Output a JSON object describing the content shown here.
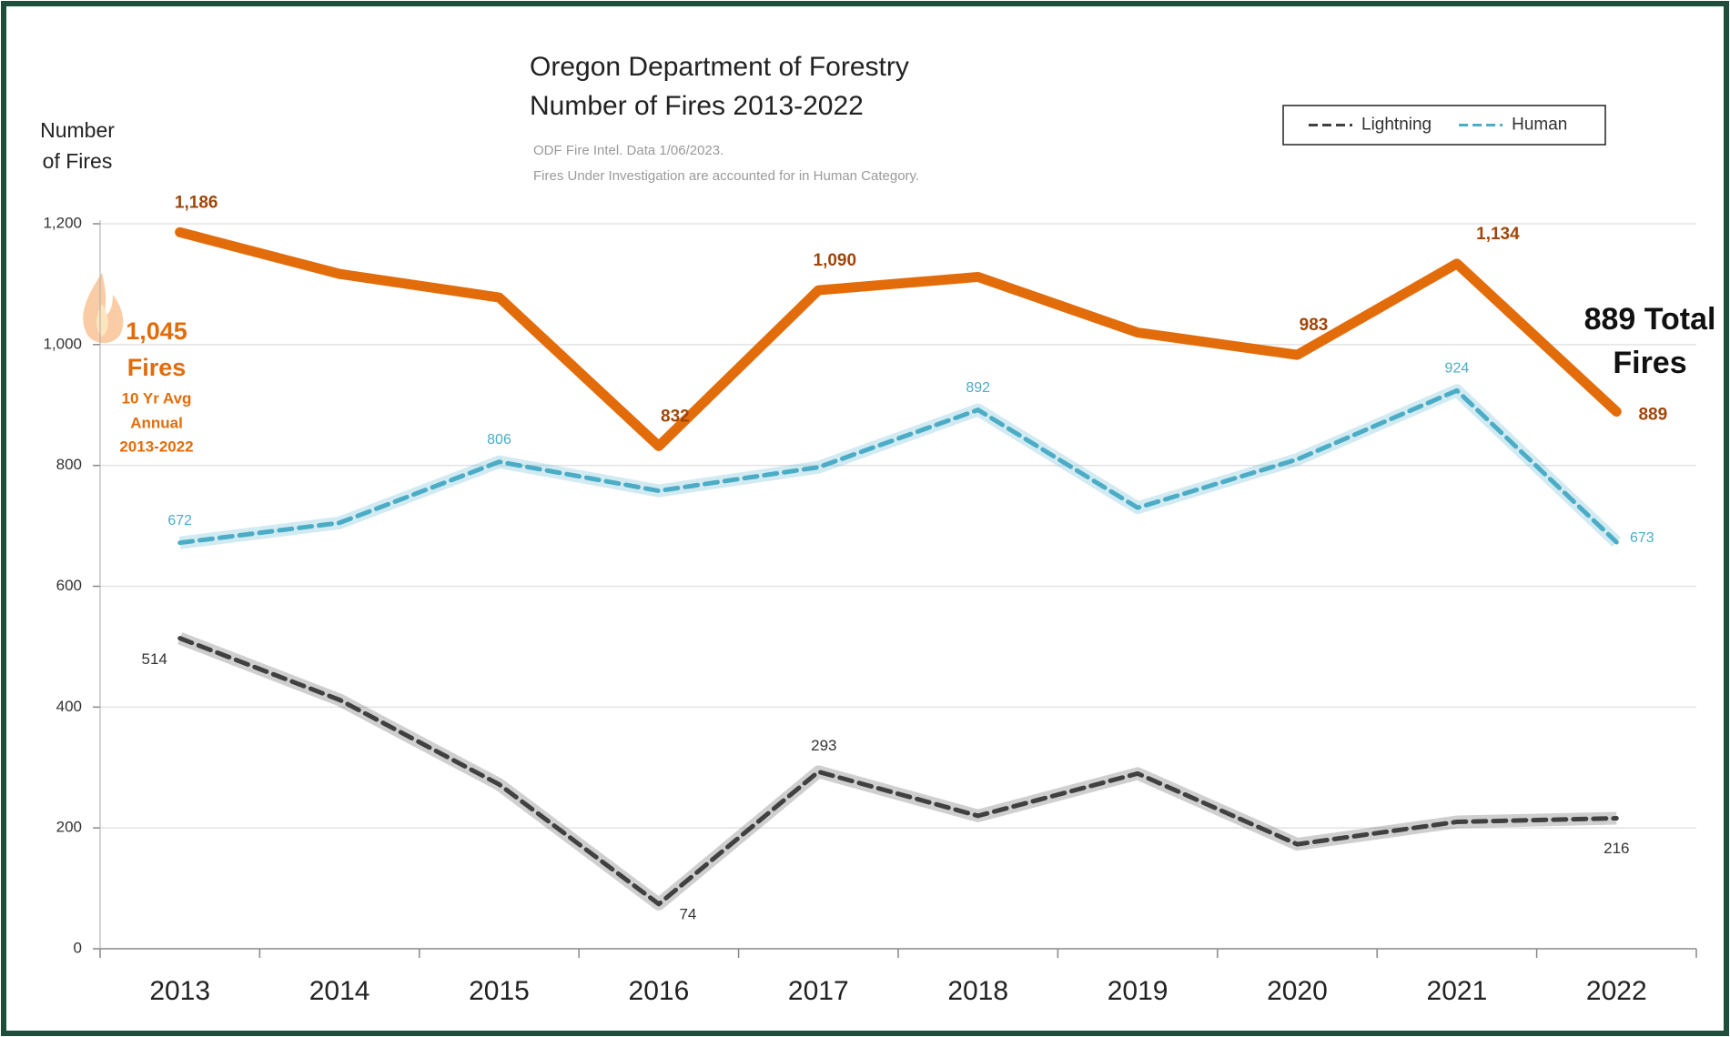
{
  "chart_data": {
    "type": "line",
    "title": [
      "Oregon Department of Forestry",
      "Number of Fires 2013-2022"
    ],
    "subtitle": [
      "ODF Fire Intel. Data 1/06/2023.",
      "Fires Under Investigation are accounted for in Human Category."
    ],
    "y_label": [
      "Number",
      "of Fires"
    ],
    "categories": [
      "2013",
      "2014",
      "2015",
      "2016",
      "2017",
      "2018",
      "2019",
      "2020",
      "2021",
      "2022"
    ],
    "series": [
      {
        "color": "#e36c0a",
        "style": "solid",
        "values": [
          1186,
          1117,
          1078,
          832,
          1090,
          1112,
          1020,
          983,
          1134,
          889
        ],
        "value_labels": [
          "1,186",
          null,
          null,
          "832",
          "1,090",
          null,
          null,
          "983",
          "1,134",
          "889"
        ]
      },
      {
        "name": "Human",
        "color": "#4bacc6",
        "style": "dashed",
        "values": [
          672,
          705,
          806,
          758,
          797,
          892,
          730,
          810,
          924,
          673
        ],
        "value_labels": [
          "672",
          null,
          "806",
          null,
          null,
          "892",
          null,
          null,
          "924",
          "673"
        ]
      },
      {
        "name": "Lightning",
        "color": "#404040",
        "style": "dashed",
        "values": [
          514,
          412,
          272,
          74,
          293,
          220,
          290,
          173,
          210,
          216
        ],
        "value_labels": [
          "514",
          null,
          null,
          "74",
          "293",
          null,
          null,
          null,
          null,
          "216"
        ]
      }
    ],
    "ylim": [
      0,
      1200
    ],
    "yticks": [
      0,
      200,
      400,
      600,
      800,
      {
        "value": 1000,
        "label": "1,000"
      },
      {
        "value": 1200,
        "label": "1,200"
      }
    ],
    "grid": true,
    "legend": "top-right",
    "annotations": {
      "average": [
        "1,045",
        "Fires",
        "10 Yr Avg",
        "Annual",
        "2013-2022"
      ],
      "total": [
        "889 Total",
        "Fires"
      ]
    }
  }
}
